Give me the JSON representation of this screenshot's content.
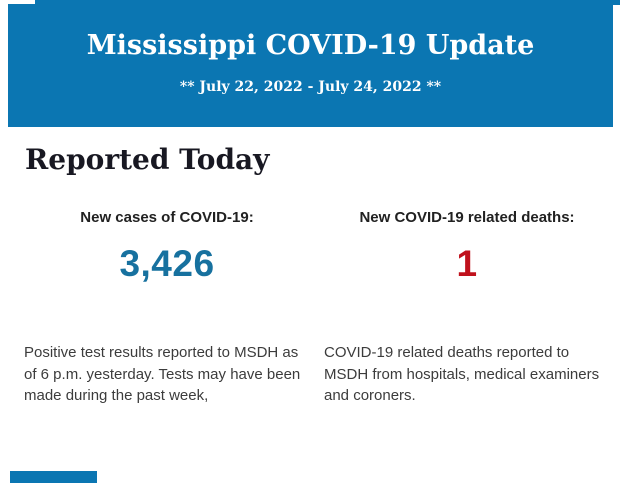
{
  "colors": {
    "banner_blue": "#0b76b2",
    "cases_value_blue": "#17719f",
    "deaths_value_red": "#c0111c",
    "section_title_dark": "#181822",
    "label_black": "#212121",
    "body_text_gray": "#3c3c3c"
  },
  "header": {
    "title": "Mississippi COVID-19 Update",
    "date_range": "** July 22, 2022 - July 24, 2022 **"
  },
  "main": {
    "section_title": "Reported Today",
    "stats": [
      {
        "label": "New cases of COVID-19:",
        "value": "3,426",
        "value_color": "#17719f",
        "description": "Positive test results reported to MSDH as of 6 p.m. yesterday. Tests may have been made during the past week,"
      },
      {
        "label": "New COVID-19 related deaths:",
        "value": "1",
        "value_color": "#c0111c",
        "description": "COVID-19 related deaths reported to MSDH from hospitals, medical examiners and coroners."
      }
    ]
  }
}
